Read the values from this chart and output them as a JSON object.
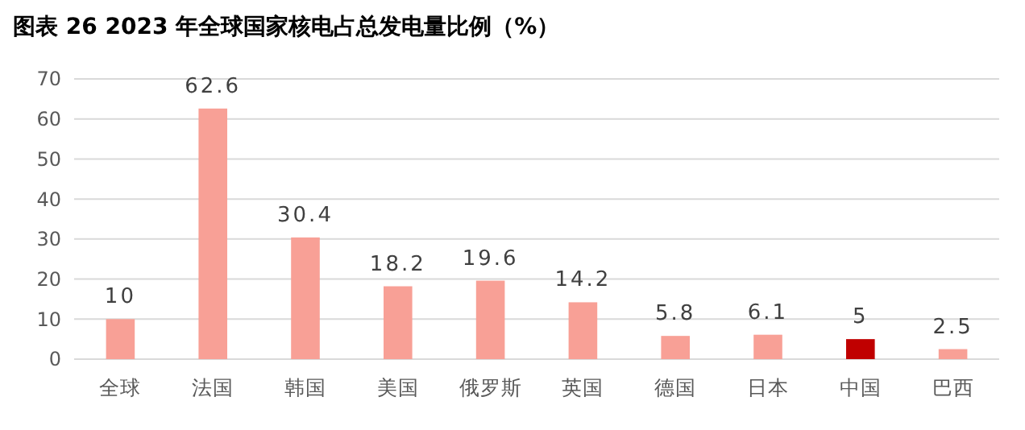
{
  "chart_data": {
    "type": "bar",
    "title": "图表 26 2023 年全球国家核电占总发电量比例（%）",
    "categories": [
      "全球",
      "法国",
      "韩国",
      "美国",
      "俄罗斯",
      "英国",
      "德国",
      "日本",
      "中国",
      "巴西"
    ],
    "values": [
      10,
      62.6,
      30.4,
      18.2,
      19.6,
      14.2,
      5.8,
      6.1,
      5,
      2.5
    ],
    "colors": [
      "#f8a096",
      "#f8a096",
      "#f8a096",
      "#f8a096",
      "#f8a096",
      "#f8a096",
      "#f8a096",
      "#f8a096",
      "#c00000",
      "#f8a096"
    ],
    "ylim": [
      0,
      70
    ],
    "yticks": [
      0,
      10,
      20,
      30,
      40,
      50,
      60,
      70
    ],
    "grid": "y",
    "data_labels": true
  }
}
